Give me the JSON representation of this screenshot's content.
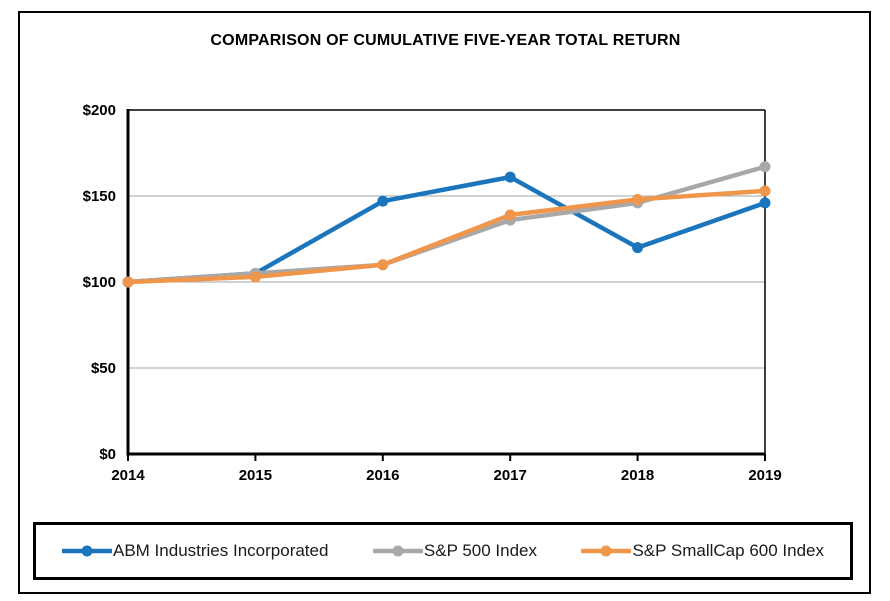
{
  "figure": {
    "title": "COMPARISON OF CUMULATIVE FIVE-YEAR TOTAL RETURN"
  },
  "chart_data": {
    "type": "line",
    "title": "COMPARISON OF CUMULATIVE FIVE-YEAR TOTAL RETURN",
    "categories": [
      "2014",
      "2015",
      "2016",
      "2017",
      "2018",
      "2019"
    ],
    "series": [
      {
        "name": "ABM Industries Incorporated",
        "color": "#1B75BC",
        "values": [
          100,
          105,
          147,
          161,
          120,
          146
        ]
      },
      {
        "name": "S&P 500 Index",
        "color": "#A8A8A8",
        "values": [
          100,
          105,
          110,
          136,
          146,
          167
        ]
      },
      {
        "name": "S&P SmallCap 600 Index",
        "color": "#F0964B",
        "values": [
          100,
          103,
          110,
          139,
          148,
          153
        ]
      }
    ],
    "xlabel": "",
    "ylabel": "",
    "ylim": [
      0,
      200
    ],
    "y_ticks": [
      {
        "value": 0,
        "label": "$0"
      },
      {
        "value": 50,
        "label": "$50"
      },
      {
        "value": 100,
        "label": "$100"
      },
      {
        "value": 150,
        "label": "$150"
      },
      {
        "value": 200,
        "label": "$200"
      }
    ],
    "grid": "horizontal",
    "legend_position": "bottom"
  },
  "colors": {
    "gridline": "#A6A6A6",
    "axis": "#000000",
    "plot_border": "#000000",
    "figure_border": "#000000",
    "background": "#ffffff"
  }
}
